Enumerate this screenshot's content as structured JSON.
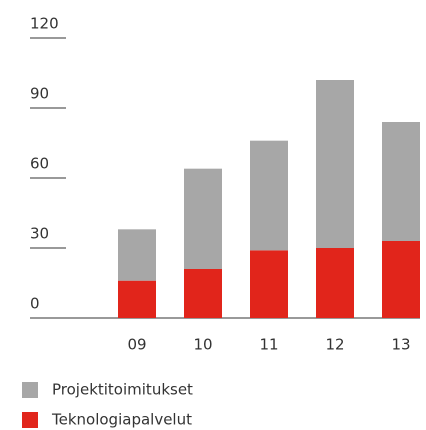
{
  "chart_data": {
    "type": "stacked-bar",
    "categories": [
      "09",
      "10",
      "11",
      "12",
      "13"
    ],
    "series": [
      {
        "name": "Teknologiapalvelut",
        "color": "#e1251b",
        "values": [
          16,
          21,
          29,
          30,
          33
        ]
      },
      {
        "name": "Projektitoimitukset",
        "color": "#a7a7a7",
        "values": [
          22,
          43,
          47,
          72,
          51
        ]
      }
    ],
    "ylim": [
      0,
      120
    ],
    "yticks": [
      0,
      30,
      60,
      90,
      120
    ]
  }
}
